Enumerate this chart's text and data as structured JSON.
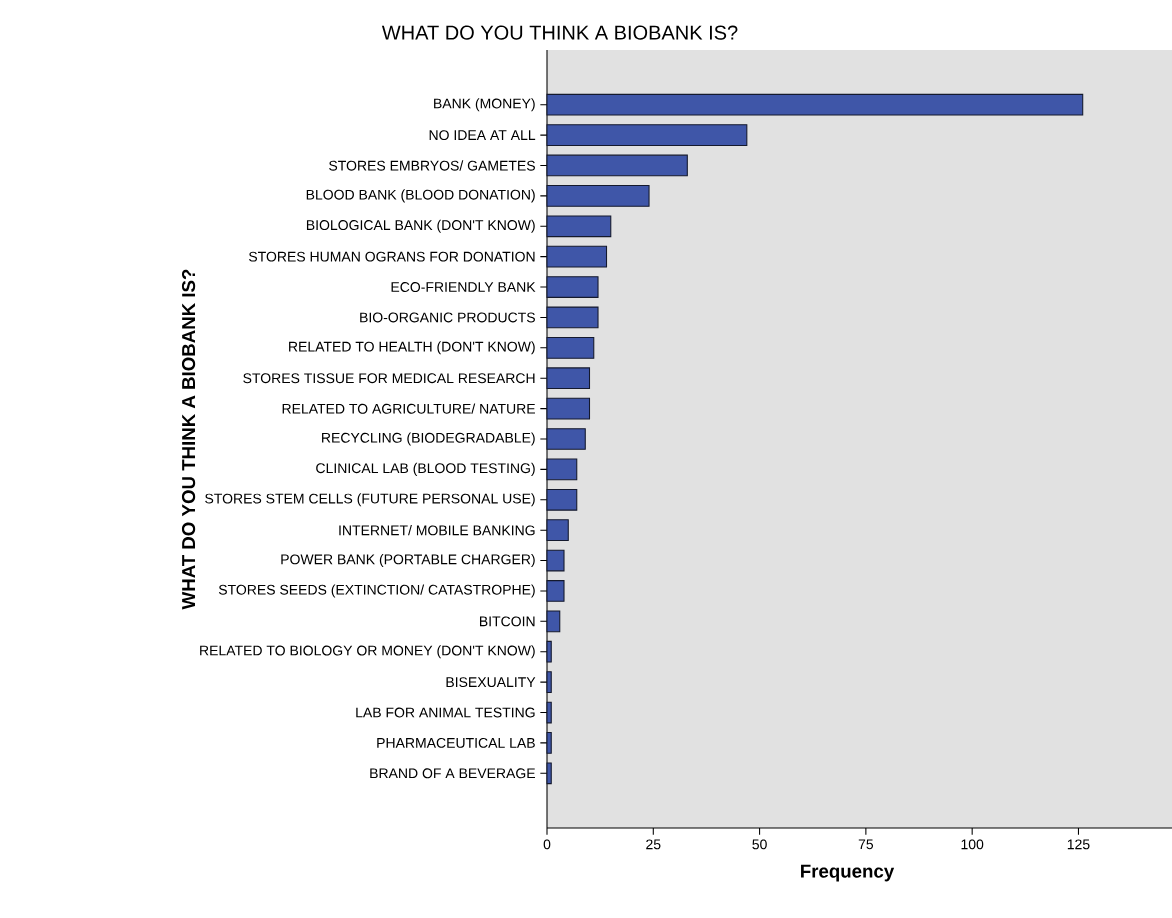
{
  "chart_data": {
    "type": "bar",
    "orientation": "horizontal",
    "title": "WHAT DO YOU THINK A BIOBANK IS?",
    "xlabel": "Frequency",
    "ylabel": "WHAT DO YOU THINK A BIOBANK IS?",
    "categories": [
      "BANK (MONEY)",
      "NO IDEA AT ALL",
      "STORES EMBRYOS/ GAMETES",
      "BLOOD BANK (BLOOD DONATION)",
      "BIOLOGICAL BANK (DON'T KNOW)",
      "STORES HUMAN OGRANS FOR DONATION",
      "ECO-FRIENDLY BANK",
      "BIO-ORGANIC PRODUCTS",
      "RELATED TO HEALTH (DON'T KNOW)",
      "STORES TISSUE FOR MEDICAL RESEARCH",
      "RELATED TO AGRICULTURE/ NATURE",
      "RECYCLING (BIODEGRADABLE)",
      "CLINICAL LAB (BLOOD TESTING)",
      "STORES STEM CELLS (FUTURE PERSONAL USE)",
      "INTERNET/ MOBILE BANKING",
      "POWER BANK (PORTABLE CHARGER)",
      "STORES SEEDS (EXTINCTION/ CATASTROPHE)",
      "BITCOIN",
      "RELATED TO BIOLOGY OR MONEY (DON'T KNOW)",
      "BISEXUALITY",
      "LAB FOR ANIMAL TESTING",
      "PHARMACEUTICAL LAB",
      "BRAND OF A BEVERAGE"
    ],
    "values": [
      126,
      47,
      33,
      24,
      15,
      14,
      12,
      12,
      11,
      10,
      10,
      9,
      7,
      7,
      5,
      4,
      4,
      3,
      1,
      1,
      1,
      1,
      1
    ],
    "color": "#3f56a8",
    "xlim": [
      0,
      147
    ],
    "xticks": [
      0,
      25,
      50,
      75,
      100,
      125
    ]
  }
}
